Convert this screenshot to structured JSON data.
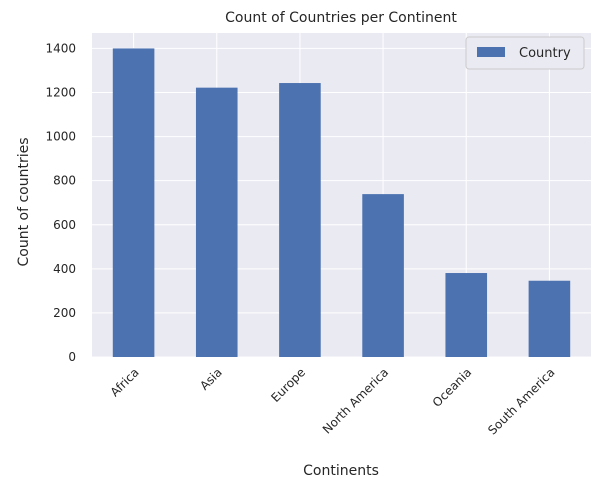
{
  "chart_data": {
    "type": "bar",
    "title": "Count of Countries per Continent",
    "xlabel": "Continents",
    "ylabel": "Count of countries",
    "categories": [
      "Africa",
      "Asia",
      "Europe",
      "North America",
      "Oceania",
      "South America"
    ],
    "series": [
      {
        "name": "Country",
        "values": [
          1400,
          1222,
          1243,
          739,
          381,
          346
        ],
        "color": "#4c72b0"
      }
    ],
    "ylim": [
      0,
      1470
    ],
    "yticks": [
      0,
      200,
      400,
      600,
      800,
      1000,
      1200,
      1400
    ],
    "grid": true,
    "legend_position": "top-right",
    "background_color": "#eaeaf2",
    "grid_color": "#ffffff"
  }
}
